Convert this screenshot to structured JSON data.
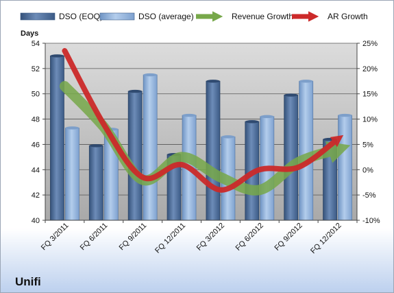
{
  "chart_data": {
    "type": "bar",
    "company": "Unifi",
    "y_left_label": "Days",
    "y_left_range": [
      40,
      54
    ],
    "y_left_ticks": [
      "40",
      "42",
      "44",
      "46",
      "48",
      "50",
      "52",
      "54"
    ],
    "y_right_range": [
      -10,
      25
    ],
    "y_right_ticks": [
      "-10%",
      "-5%",
      "0%",
      "5%",
      "10%",
      "15%",
      "20%",
      "25%"
    ],
    "categories": [
      "FQ 3/2011",
      "FQ 6/2011",
      "FQ 9/2011",
      "FQ 12/2011",
      "FQ 3/2012",
      "FQ 6/2012",
      "FQ 9/2012",
      "FQ 12/2012"
    ],
    "bar_series": [
      {
        "name": "DSO (EOQ)",
        "color": "#4f6d96",
        "values": [
          53.0,
          45.9,
          50.2,
          45.2,
          51.0,
          47.8,
          49.9,
          46.4
        ]
      },
      {
        "name": "DSO (average)",
        "color": "#8fb0d8",
        "values": [
          47.3,
          47.2,
          51.5,
          48.3,
          46.6,
          48.2,
          51.0,
          48.3
        ]
      }
    ],
    "line_series": [
      {
        "name": "Revenue Growth",
        "color": "#77a84a",
        "axis": "right",
        "values": [
          16.5,
          8.5,
          -2.0,
          2.5,
          -1.5,
          -4.0,
          1.5,
          4.0
        ]
      },
      {
        "name": "AR Growth",
        "color": "#cc2a2a",
        "axis": "right",
        "values": [
          23.5,
          9.0,
          -1.5,
          1.0,
          -4.0,
          0.0,
          0.5,
          6.0
        ]
      }
    ],
    "legend_position": "top",
    "grid": true
  }
}
